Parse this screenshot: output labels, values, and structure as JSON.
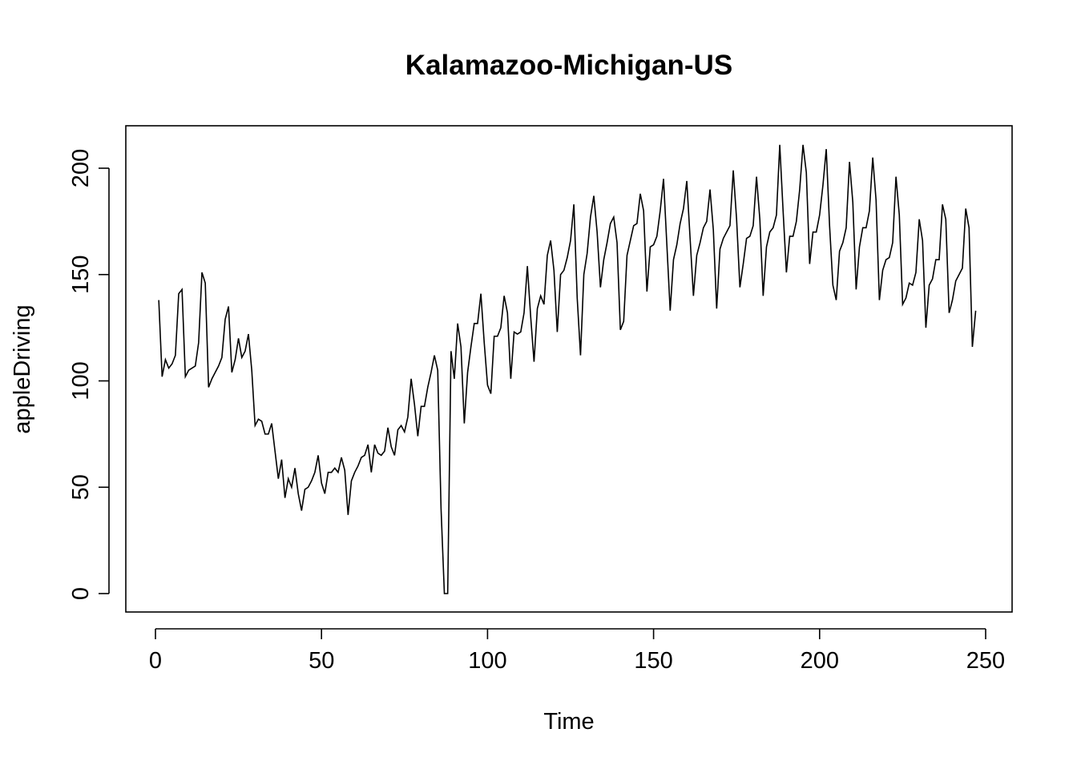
{
  "chart_data": {
    "type": "line",
    "title": "Kalamazoo-Michigan-US",
    "xlabel": "Time",
    "ylabel": "appleDriving",
    "xlim": [
      0,
      250
    ],
    "ylim": [
      0,
      200
    ],
    "x_ticks": [
      0,
      50,
      100,
      150,
      200,
      250
    ],
    "y_ticks": [
      0,
      50,
      100,
      150,
      200
    ],
    "x_tick_labels": [
      "0",
      "50",
      "100",
      "150",
      "200",
      "250"
    ],
    "y_tick_labels": [
      "0",
      "50",
      "100",
      "150",
      "200"
    ],
    "grid": false,
    "legend": "none",
    "x_start": 1,
    "values": [
      138,
      102,
      110,
      106,
      108,
      112,
      141,
      143,
      102,
      105,
      106,
      107,
      118,
      151,
      146,
      97,
      101,
      104,
      107,
      111,
      129,
      135,
      104,
      110,
      120,
      111,
      114,
      122,
      105,
      79,
      82,
      81,
      75,
      75,
      80,
      67,
      54,
      63,
      45,
      54,
      50,
      59,
      47,
      39,
      49,
      50,
      53,
      57,
      65,
      52,
      47,
      57,
      57,
      59,
      57,
      64,
      58,
      37,
      53,
      57,
      60,
      64,
      65,
      70,
      57,
      70,
      66,
      65,
      67,
      78,
      69,
      65,
      77,
      79,
      76,
      83,
      101,
      89,
      74,
      88,
      88,
      97,
      104,
      112,
      105,
      40,
      0,
      0,
      114,
      101,
      127,
      116,
      80,
      104,
      116,
      127,
      127,
      141,
      118,
      98,
      94,
      121,
      121,
      125,
      140,
      132,
      101,
      123,
      122,
      123,
      132,
      154,
      130,
      109,
      134,
      140,
      136,
      159,
      166,
      152,
      123,
      150,
      152,
      158,
      166,
      183,
      139,
      112,
      150,
      160,
      177,
      187,
      170,
      144,
      157,
      165,
      174,
      177,
      165,
      124,
      128,
      159,
      166,
      173,
      174,
      188,
      180,
      142,
      163,
      164,
      168,
      180,
      195,
      164,
      133,
      157,
      164,
      174,
      181,
      194,
      167,
      140,
      159,
      165,
      172,
      175,
      190,
      171,
      134,
      162,
      167,
      170,
      173,
      199,
      176,
      144,
      155,
      167,
      168,
      173,
      196,
      176,
      140,
      163,
      170,
      172,
      178,
      211,
      180,
      151,
      168,
      168,
      175,
      190,
      211,
      198,
      155,
      170,
      170,
      178,
      192,
      209,
      173,
      145,
      138,
      161,
      165,
      172,
      203,
      184,
      143,
      163,
      172,
      172,
      180,
      205,
      185,
      138,
      152,
      157,
      158,
      165,
      196,
      178,
      136,
      139,
      146,
      145,
      151,
      176,
      166,
      125,
      145,
      148,
      157,
      157,
      183,
      176,
      132,
      138,
      147,
      150,
      153,
      181,
      172,
      116,
      133
    ]
  }
}
